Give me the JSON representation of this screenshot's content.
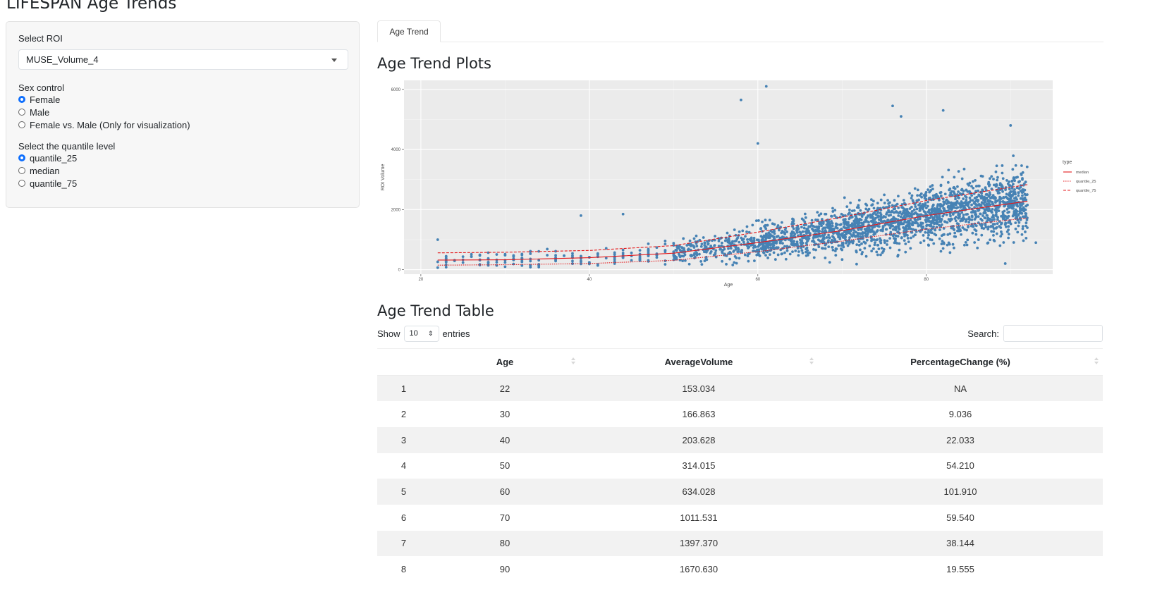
{
  "app": {
    "title": "LIFESPAN Age Trends"
  },
  "sidebar": {
    "roi_label": "Select ROI",
    "roi_value": "MUSE_Volume_4",
    "sex_label": "Sex control",
    "sex_options": [
      {
        "label": "Female",
        "selected": true
      },
      {
        "label": "Male",
        "selected": false
      },
      {
        "label": "Female vs. Male (Only for visualization)",
        "selected": false
      }
    ],
    "quantile_label": "Select the quantile level",
    "quantile_options": [
      {
        "label": "quantile_25",
        "selected": true
      },
      {
        "label": "median",
        "selected": false
      },
      {
        "label": "quantile_75",
        "selected": false
      }
    ]
  },
  "tabs": [
    {
      "label": "Age Trend",
      "active": true
    }
  ],
  "plots_heading": "Age Trend Plots",
  "table_heading": "Age Trend Table",
  "datatable": {
    "show_label": "Show",
    "length_value": "10",
    "entries_label": "entries",
    "search_label": "Search:",
    "columns": [
      "",
      "Age",
      "AverageVolume",
      "PercentageChange (%)"
    ],
    "rows": [
      [
        "1",
        "22",
        "153.034",
        "NA"
      ],
      [
        "2",
        "30",
        "166.863",
        "9.036"
      ],
      [
        "3",
        "40",
        "203.628",
        "22.033"
      ],
      [
        "4",
        "50",
        "314.015",
        "54.210"
      ],
      [
        "5",
        "60",
        "634.028",
        "101.910"
      ],
      [
        "6",
        "70",
        "1011.531",
        "59.540"
      ],
      [
        "7",
        "80",
        "1397.370",
        "38.144"
      ],
      [
        "8",
        "90",
        "1670.630",
        "19.555"
      ]
    ]
  },
  "chart_data": {
    "type": "scatter",
    "xlabel": "Age",
    "ylabel": "ROI Volume",
    "xlim": [
      18,
      95
    ],
    "ylim": [
      -150,
      6300
    ],
    "xticks": [
      20,
      40,
      60,
      80
    ],
    "yticks": [
      0,
      2000,
      4000,
      6000
    ],
    "grid": true,
    "legend": {
      "title": "type",
      "position": "right",
      "entries": [
        "median",
        "quantile_25",
        "quantile_75"
      ]
    },
    "colors": {
      "points": "#4682B4",
      "lines": "#E41A1C",
      "panel": "#EBEBEB",
      "grid": "#FFFFFF"
    },
    "series": [
      {
        "name": "median",
        "style": "solid",
        "x": [
          22,
          30,
          40,
          50,
          60,
          70,
          80,
          92
        ],
        "y": [
          320,
          330,
          400,
          550,
          900,
          1300,
          1800,
          2280
        ]
      },
      {
        "name": "quantile_25",
        "style": "dotted",
        "x": [
          22,
          30,
          40,
          50,
          60,
          70,
          80,
          92
        ],
        "y": [
          150,
          165,
          205,
          310,
          600,
          950,
          1350,
          1720
        ]
      },
      {
        "name": "quantile_75",
        "style": "dashed",
        "x": [
          22,
          30,
          40,
          50,
          60,
          70,
          80,
          92
        ],
        "y": [
          560,
          580,
          640,
          800,
          1250,
          1750,
          2300,
          2830
        ]
      }
    ],
    "outliers": [
      {
        "x": 58,
        "y": 5650
      },
      {
        "x": 61,
        "y": 6100
      },
      {
        "x": 60,
        "y": 4200
      },
      {
        "x": 76,
        "y": 5450
      },
      {
        "x": 77,
        "y": 5100
      },
      {
        "x": 82,
        "y": 5300
      },
      {
        "x": 90,
        "y": 4800
      },
      {
        "x": 39,
        "y": 1800
      },
      {
        "x": 44,
        "y": 1850
      },
      {
        "x": 22,
        "y": 1000
      },
      {
        "x": 93,
        "y": 900
      }
    ]
  }
}
